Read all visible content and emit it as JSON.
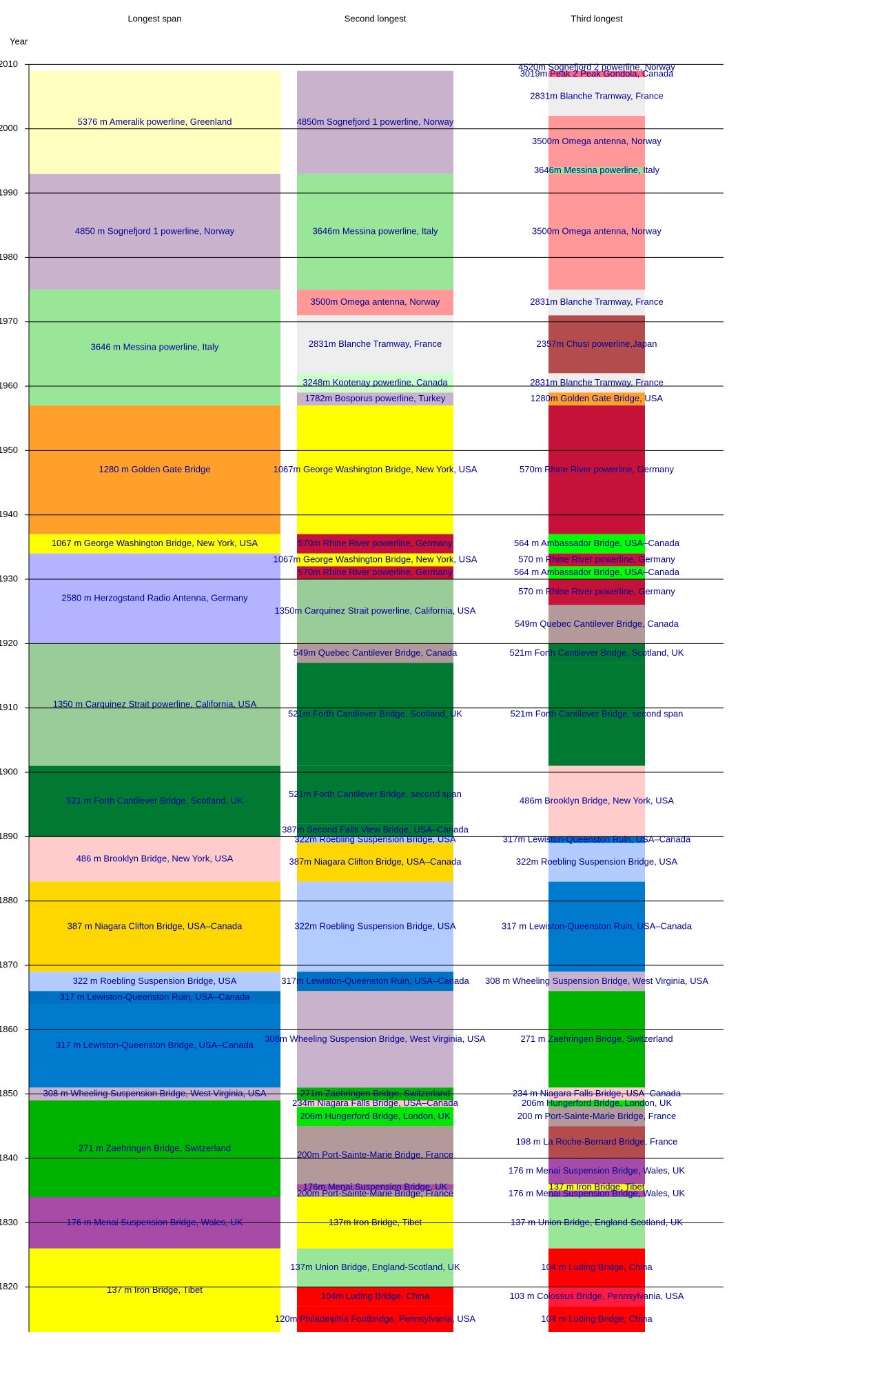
{
  "chart_data": {
    "type": "timeline",
    "y_label": "Year",
    "ylim": [
      1813,
      2010
    ],
    "yticks": [
      1820,
      1830,
      1840,
      1850,
      1860,
      1870,
      1880,
      1890,
      1900,
      1910,
      1920,
      1930,
      1940,
      1950,
      1960,
      1970,
      1980,
      1990,
      2000,
      2010
    ],
    "grid": true,
    "label_color": "#000099",
    "columns": [
      {
        "title": "Longest span",
        "segments": [
          {
            "label": "5376 m Ameralik powerline, Greenland",
            "start": 1993,
            "end": 2009,
            "color": "#ffffc0"
          },
          {
            "label": "4850 m Sognefjord 1 powerline, Norway",
            "start": 1975,
            "end": 1993,
            "color": "#c9b3cc"
          },
          {
            "label": "3646 m Messina powerline, Italy",
            "start": 1957,
            "end": 1975,
            "color": "#99e699"
          },
          {
            "label": "1280 m Golden Gate Bridge",
            "start": 1937,
            "end": 1957,
            "color": "#ffa02a"
          },
          {
            "label": "1067 m George Washington Bridge, New York, USA",
            "start": 1934,
            "end": 1937,
            "color": "#ffff00"
          },
          {
            "label": "2580 m Herzogstand Radio Antenna, Germany",
            "start": 1920,
            "end": 1934,
            "color": "#b3b3ff"
          },
          {
            "label": "1350 m Carquinez Strait powerline, California, USA",
            "start": 1901,
            "end": 1920,
            "color": "#99cc99"
          },
          {
            "label": "521 m Forth Cantilever Bridge, Scotland, UK",
            "start": 1890,
            "end": 1901,
            "color": "#007a33"
          },
          {
            "label": "486 m Brooklyn Bridge, New York, USA",
            "start": 1883,
            "end": 1890,
            "color": "#ffcccc"
          },
          {
            "label": "387 m Niagara Clifton Bridge, USA–Canada",
            "start": 1869,
            "end": 1883,
            "color": "#ffd700"
          },
          {
            "label": "322 m Roebling Suspension Bridge, USA",
            "start": 1866,
            "end": 1869,
            "color": "#b3ccff"
          },
          {
            "label": "317 m Lewiston-Queenston Ruin, USA–Canada",
            "start": 1864,
            "end": 1866,
            "color": "#0070c0"
          },
          {
            "label": "317 m Lewiston-Queenston Bridge, USA–Canada",
            "start": 1851,
            "end": 1864,
            "color": "#007acc"
          },
          {
            "label": "308 m Wheeling Suspension Bridge, West Virginia, USA",
            "start": 1849,
            "end": 1851,
            "color": "#c9b3cc"
          },
          {
            "label": "271 m Zaehringen Bridge, Switzerland",
            "start": 1834,
            "end": 1849,
            "color": "#00b300"
          },
          {
            "label": "176 m Menai Suspension Bridge, Wales, UK",
            "start": 1826,
            "end": 1834,
            "color": "#a64ca6"
          },
          {
            "label": "137 m Iron Bridge, Tibet",
            "start": 1813,
            "end": 1826,
            "color": "#ffff00"
          }
        ]
      },
      {
        "title": "Second longest",
        "segments": [
          {
            "label": "4850m Sognefjord 1 powerline, Norway",
            "start": 1993,
            "end": 2009,
            "color": "#c9b3cc"
          },
          {
            "label": "3646m Messina powerline, Italy",
            "start": 1975,
            "end": 1993,
            "color": "#99e699"
          },
          {
            "label": "3500m Omega antenna, Norway",
            "start": 1971,
            "end": 1975,
            "color": "#ff9999"
          },
          {
            "label": "2831m Blanche Tramway, France",
            "start": 1962,
            "end": 1971,
            "color": "#eeeeee"
          },
          {
            "label": "3248m Kootenay powerline, Canada",
            "start": 1959,
            "end": 1962,
            "color": "#ccffcc"
          },
          {
            "label": "1782m Bosporus powerline, Turkey",
            "start": 1957,
            "end": 1959,
            "color": "#c9b3cc"
          },
          {
            "label": "1067m George Washington Bridge, New York, USA",
            "start": 1937,
            "end": 1957,
            "color": "#ffff00"
          },
          {
            "label": "570m Rhine River powerline, Germany",
            "start": 1934,
            "end": 1937,
            "color": "#c41238"
          },
          {
            "label": "1067m George Washington Bridge, New York, USA",
            "start": 1932,
            "end": 1934,
            "color": "#ffff00"
          },
          {
            "label": "570m Rhine River powerline, Germany",
            "start": 1930,
            "end": 1932,
            "color": "#c41238"
          },
          {
            "label": "1350m Carquinez Strait powerline, California, USA",
            "start": 1920,
            "end": 1930,
            "color": "#99cc99"
          },
          {
            "label": "549m Quebec Cantilever Bridge, Canada",
            "start": 1917,
            "end": 1920,
            "color": "#b39999"
          },
          {
            "label": "521m Forth Cantilever Bridge, Scotland, UK",
            "start": 1901,
            "end": 1917,
            "color": "#007a33"
          },
          {
            "label": "521m Forth Cantilever Bridge, second span",
            "start": 1892,
            "end": 1901,
            "color": "#007a33"
          },
          {
            "label": "387m Second Falls View Bridge, USA–Canada",
            "start": 1890,
            "end": 1892,
            "color": "#007a33"
          },
          {
            "label": "322m Roebling Suspension Bridge, USA",
            "start": 1889,
            "end": 1890,
            "color": "#b3ccff"
          },
          {
            "label": "387m Niagara Clifton Bridge, USA–Canada",
            "start": 1883,
            "end": 1889,
            "color": "#ffd700"
          },
          {
            "label": "322m Roebling Suspension Bridge, USA",
            "start": 1869,
            "end": 1883,
            "color": "#b3ccff"
          },
          {
            "label": "317m Lewiston-Queenston Ruin, USA–Canada",
            "start": 1866,
            "end": 1869,
            "color": "#0070c0"
          },
          {
            "label": "308m Wheeling Suspension Bridge, West Virginia, USA",
            "start": 1851,
            "end": 1866,
            "color": "#c9b3cc"
          },
          {
            "label": "271m Zaehringen Bridge, Switzerland",
            "start": 1849,
            "end": 1851,
            "color": "#00b300"
          },
          {
            "label": "234m Niagara Falls Bridge, USA–Canada",
            "start": 1848,
            "end": 1849,
            "color": "#ffcccc"
          },
          {
            "label": "206m Hungerford Bridge, London, UK",
            "start": 1845,
            "end": 1848,
            "color": "#00e600"
          },
          {
            "label": "200m Port-Sainte-Marie Bridge, France",
            "start": 1836,
            "end": 1845,
            "color": "#b39999"
          },
          {
            "label": "176m Menai Suspension Bridge, UK",
            "start": 1835,
            "end": 1836,
            "color": "#a64ca6"
          },
          {
            "label": "200m Port-Sainte-Marie Bridge, France",
            "start": 1834,
            "end": 1835,
            "color": "#b39999"
          },
          {
            "label": "137m Iron Bridge, Tibet",
            "start": 1826,
            "end": 1834,
            "color": "#ffff00"
          },
          {
            "label": "137m Union Bridge, England-Scotland, UK",
            "start": 1820,
            "end": 1826,
            "color": "#99e699"
          },
          {
            "label": "104m Luding Bridge, China",
            "start": 1817,
            "end": 1820,
            "color": "#ff0000"
          },
          {
            "label": "120m Philadelphia Footbridge, Pennsylvania, USA",
            "start": 1813,
            "end": 1817,
            "color": "#ff0000"
          }
        ]
      },
      {
        "title": "Third longest",
        "segments": [
          {
            "label": "4520m Sognefjord 2 powerline, Norway",
            "start": 2009,
            "end": 2010,
            "color": "#ffffff"
          },
          {
            "label": "3019m Peak 2 Peak Gondola, Canada",
            "start": 2008,
            "end": 2009,
            "color": "#ff6680"
          },
          {
            "label": "2831m Blanche Tramway, France",
            "start": 2002,
            "end": 2008,
            "color": "#eeeeee"
          },
          {
            "label": "3500m Omega antenna, Norway",
            "start": 1994,
            "end": 2002,
            "color": "#ff9999"
          },
          {
            "label": "3646m Messina powerline, Italy",
            "start": 1993,
            "end": 1994,
            "color": "#99e699"
          },
          {
            "label": "3500m Omega antenna, Norway",
            "start": 1975,
            "end": 1993,
            "color": "#ff9999"
          },
          {
            "label": "2831m Blanche Tramway, France",
            "start": 1971,
            "end": 1975,
            "color": "#eeeeee"
          },
          {
            "label": "2357m Chusi powerline,Japan",
            "start": 1962,
            "end": 1971,
            "color": "#b34d4d"
          },
          {
            "label": "2831m Blanche Tramway, France",
            "start": 1959,
            "end": 1962,
            "color": "#eeeeee"
          },
          {
            "label": "1280m Golden Gate Bridge, USA",
            "start": 1957,
            "end": 1959,
            "color": "#ffa02a"
          },
          {
            "label": "570m Rhine River powerline, Germany",
            "start": 1937,
            "end": 1957,
            "color": "#c41238"
          },
          {
            "label": "564 m Ambassador Bridge, USA–Canada",
            "start": 1934,
            "end": 1937,
            "color": "#00ff00"
          },
          {
            "label": "570 m Rhine River powerline, Germany",
            "start": 1932,
            "end": 1934,
            "color": "#c41238"
          },
          {
            "label": "564 m Ambassador Bridge, USA–Canada",
            "start": 1930,
            "end": 1932,
            "color": "#00ff00"
          },
          {
            "label": "570 m Rhine River powerline, Germany",
            "start": 1926,
            "end": 1930,
            "color": "#c41238"
          },
          {
            "label": "549m Quebec Cantilever Bridge, Canada",
            "start": 1920,
            "end": 1926,
            "color": "#b39999"
          },
          {
            "label": "521m Forth Cantilever Bridge, Scotland, UK",
            "start": 1917,
            "end": 1920,
            "color": "#007a33"
          },
          {
            "label": "521m Forth Cantilever Bridge, second span",
            "start": 1901,
            "end": 1917,
            "color": "#007a33"
          },
          {
            "label": "486m Brooklyn Bridge, New York, USA",
            "start": 1890,
            "end": 1901,
            "color": "#ffcccc"
          },
          {
            "label": "317m Lewiston-Queenston Ruin, USA–Canada",
            "start": 1889,
            "end": 1890,
            "color": "#0070c0"
          },
          {
            "label": "322m Roebling Suspension Bridge, USA",
            "start": 1883,
            "end": 1889,
            "color": "#b3ccff"
          },
          {
            "label": "317 m Lewiston-Queenston Ruin, USA–Canada",
            "start": 1869,
            "end": 1883,
            "color": "#007acc"
          },
          {
            "label": "308 m Wheeling Suspension Bridge, West Virginia, USA",
            "start": 1866,
            "end": 1869,
            "color": "#c9b3cc"
          },
          {
            "label": "271 m Zaehringen Bridge, Switzerland",
            "start": 1851,
            "end": 1866,
            "color": "#00b300"
          },
          {
            "label": "234 m Niagara Falls Bridge, USA–Canada",
            "start": 1849,
            "end": 1851,
            "color": "#ffcccc"
          },
          {
            "label": "206m Hungerford Bridge, London, UK",
            "start": 1848,
            "end": 1849,
            "color": "#00e600"
          },
          {
            "label": "200 m Port-Sainte-Marie Bridge, France",
            "start": 1845,
            "end": 1848,
            "color": "#b39999"
          },
          {
            "label": "198 m La Roche-Bernard Bridge, France",
            "start": 1840,
            "end": 1845,
            "color": "#b34d4d"
          },
          {
            "label": "176 m Menai Suspension Bridge, Wales, UK",
            "start": 1836,
            "end": 1840,
            "color": "#a64ca6"
          },
          {
            "label": "137 m Iron Bridge, Tibet",
            "start": 1835,
            "end": 1836,
            "color": "#ffff00"
          },
          {
            "label": "176 m Menai Suspension Bridge, Wales, UK",
            "start": 1834,
            "end": 1835,
            "color": "#a64ca6"
          },
          {
            "label": "137 m Union Bridge, England-Scotland, UK",
            "start": 1826,
            "end": 1834,
            "color": "#99e699"
          },
          {
            "label": "104 m Luding Bridge, China",
            "start": 1820,
            "end": 1826,
            "color": "#ff0000"
          },
          {
            "label": "103 m Colossus Bridge, Pennsylvania, USA",
            "start": 1817,
            "end": 1820,
            "color": "#ff1a40"
          },
          {
            "label": "104 m Luding Bridge, China",
            "start": 1813,
            "end": 1817,
            "color": "#ff0000"
          }
        ]
      }
    ]
  }
}
